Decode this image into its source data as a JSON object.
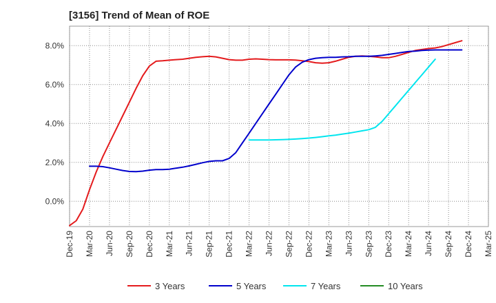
{
  "chart_data": {
    "type": "line",
    "title": "[3156]  Trend of Mean of ROE",
    "xlabel": "",
    "ylabel": "",
    "ylim": [
      -1.3,
      9.0
    ],
    "grid": true,
    "legend_position": "bottom",
    "x_ticks": [
      "Dec-19",
      "Mar-20",
      "Jun-20",
      "Sep-20",
      "Dec-20",
      "Mar-21",
      "Jun-21",
      "Sep-21",
      "Dec-21",
      "Mar-22",
      "Jun-22",
      "Sep-22",
      "Dec-22",
      "Mar-23",
      "Jun-23",
      "Sep-23",
      "Dec-23",
      "Mar-24",
      "Jun-24",
      "Sep-24",
      "Dec-24",
      "Mar-25"
    ],
    "y_ticks": [
      0.0,
      2.0,
      4.0,
      6.0,
      8.0
    ],
    "y_tick_labels": [
      "0.0%",
      "2.0%",
      "4.0%",
      "6.0%",
      "8.0%"
    ],
    "series": [
      {
        "name": "3 Years",
        "color": "#e41a1c",
        "points": [
          [
            "Dec-19",
            -1.25
          ],
          [
            "Jan-20",
            -1.0
          ],
          [
            "Feb-20",
            -0.4
          ],
          [
            "Mar-20",
            0.6
          ],
          [
            "Apr-20",
            1.5
          ],
          [
            "May-20",
            2.3
          ],
          [
            "Jun-20",
            3.0
          ],
          [
            "Jul-20",
            3.7
          ],
          [
            "Aug-20",
            4.4
          ],
          [
            "Sep-20",
            5.1
          ],
          [
            "Oct-20",
            5.8
          ],
          [
            "Nov-20",
            6.45
          ],
          [
            "Dec-20",
            6.95
          ],
          [
            "Jan-21",
            7.2
          ],
          [
            "Feb-21",
            7.22
          ],
          [
            "Mar-21",
            7.25
          ],
          [
            "Apr-21",
            7.28
          ],
          [
            "May-21",
            7.3
          ],
          [
            "Jun-21",
            7.35
          ],
          [
            "Jul-21",
            7.4
          ],
          [
            "Aug-21",
            7.43
          ],
          [
            "Sep-21",
            7.45
          ],
          [
            "Oct-21",
            7.42
          ],
          [
            "Nov-21",
            7.35
          ],
          [
            "Dec-21",
            7.28
          ],
          [
            "Jan-22",
            7.25
          ],
          [
            "Feb-22",
            7.25
          ],
          [
            "Mar-22",
            7.3
          ],
          [
            "Apr-22",
            7.32
          ],
          [
            "May-22",
            7.3
          ],
          [
            "Jun-22",
            7.28
          ],
          [
            "Jul-22",
            7.27
          ],
          [
            "Aug-22",
            7.27
          ],
          [
            "Sep-22",
            7.27
          ],
          [
            "Oct-22",
            7.26
          ],
          [
            "Nov-22",
            7.22
          ],
          [
            "Dec-22",
            7.18
          ],
          [
            "Jan-23",
            7.12
          ],
          [
            "Feb-23",
            7.1
          ],
          [
            "Mar-23",
            7.12
          ],
          [
            "Apr-23",
            7.2
          ],
          [
            "May-23",
            7.3
          ],
          [
            "Jun-23",
            7.4
          ],
          [
            "Jul-23",
            7.45
          ],
          [
            "Aug-23",
            7.47
          ],
          [
            "Sep-23",
            7.45
          ],
          [
            "Oct-23",
            7.42
          ],
          [
            "Nov-23",
            7.38
          ],
          [
            "Dec-23",
            7.38
          ],
          [
            "Jan-24",
            7.45
          ],
          [
            "Feb-24",
            7.55
          ],
          [
            "Mar-24",
            7.65
          ],
          [
            "Apr-24",
            7.75
          ],
          [
            "May-24",
            7.8
          ],
          [
            "Jun-24",
            7.85
          ],
          [
            "Jul-24",
            7.88
          ],
          [
            "Aug-24",
            7.95
          ],
          [
            "Sep-24",
            8.05
          ],
          [
            "Oct-24",
            8.15
          ],
          [
            "Nov-24",
            8.25
          ]
        ]
      },
      {
        "name": "5 Years",
        "color": "#0000cc",
        "points": [
          [
            "Mar-20",
            1.8
          ],
          [
            "Apr-20",
            1.8
          ],
          [
            "May-20",
            1.78
          ],
          [
            "Jun-20",
            1.72
          ],
          [
            "Jul-20",
            1.65
          ],
          [
            "Aug-20",
            1.58
          ],
          [
            "Sep-20",
            1.53
          ],
          [
            "Oct-20",
            1.52
          ],
          [
            "Nov-20",
            1.55
          ],
          [
            "Dec-20",
            1.6
          ],
          [
            "Jan-21",
            1.63
          ],
          [
            "Feb-21",
            1.63
          ],
          [
            "Mar-21",
            1.65
          ],
          [
            "Apr-21",
            1.7
          ],
          [
            "May-21",
            1.75
          ],
          [
            "Jun-21",
            1.82
          ],
          [
            "Jul-21",
            1.9
          ],
          [
            "Aug-21",
            1.98
          ],
          [
            "Sep-21",
            2.05
          ],
          [
            "Oct-21",
            2.08
          ],
          [
            "Nov-21",
            2.08
          ],
          [
            "Dec-21",
            2.2
          ],
          [
            "Jan-22",
            2.5
          ],
          [
            "Feb-22",
            3.0
          ],
          [
            "Mar-22",
            3.5
          ],
          [
            "Apr-22",
            4.0
          ],
          [
            "May-22",
            4.5
          ],
          [
            "Jun-22",
            5.0
          ],
          [
            "Jul-22",
            5.5
          ],
          [
            "Aug-22",
            6.0
          ],
          [
            "Sep-22",
            6.5
          ],
          [
            "Oct-22",
            6.9
          ],
          [
            "Nov-22",
            7.15
          ],
          [
            "Dec-22",
            7.28
          ],
          [
            "Jan-23",
            7.35
          ],
          [
            "Feb-23",
            7.38
          ],
          [
            "Mar-23",
            7.4
          ],
          [
            "Apr-23",
            7.4
          ],
          [
            "May-23",
            7.42
          ],
          [
            "Jun-23",
            7.43
          ],
          [
            "Jul-23",
            7.45
          ],
          [
            "Aug-23",
            7.45
          ],
          [
            "Sep-23",
            7.45
          ],
          [
            "Oct-23",
            7.47
          ],
          [
            "Nov-23",
            7.5
          ],
          [
            "Dec-23",
            7.55
          ],
          [
            "Jan-24",
            7.6
          ],
          [
            "Feb-24",
            7.65
          ],
          [
            "Mar-24",
            7.7
          ],
          [
            "Apr-24",
            7.72
          ],
          [
            "May-24",
            7.75
          ],
          [
            "Jun-24",
            7.77
          ],
          [
            "Jul-24",
            7.78
          ],
          [
            "Aug-24",
            7.78
          ],
          [
            "Sep-24",
            7.78
          ],
          [
            "Oct-24",
            7.78
          ],
          [
            "Nov-24",
            7.78
          ]
        ]
      },
      {
        "name": "7 Years",
        "color": "#00e5ee",
        "points": [
          [
            "Mar-22",
            3.15
          ],
          [
            "Apr-22",
            3.15
          ],
          [
            "May-22",
            3.15
          ],
          [
            "Jun-22",
            3.15
          ],
          [
            "Jul-22",
            3.16
          ],
          [
            "Aug-22",
            3.17
          ],
          [
            "Sep-22",
            3.18
          ],
          [
            "Oct-22",
            3.2
          ],
          [
            "Nov-22",
            3.22
          ],
          [
            "Dec-22",
            3.25
          ],
          [
            "Jan-23",
            3.28
          ],
          [
            "Feb-23",
            3.32
          ],
          [
            "Mar-23",
            3.36
          ],
          [
            "Apr-23",
            3.4
          ],
          [
            "May-23",
            3.45
          ],
          [
            "Jun-23",
            3.5
          ],
          [
            "Jul-23",
            3.56
          ],
          [
            "Aug-23",
            3.62
          ],
          [
            "Sep-23",
            3.68
          ],
          [
            "Oct-23",
            3.8
          ],
          [
            "Nov-23",
            4.1
          ],
          [
            "Dec-23",
            4.5
          ],
          [
            "Jan-24",
            4.9
          ],
          [
            "Feb-24",
            5.3
          ],
          [
            "Mar-24",
            5.7
          ],
          [
            "Apr-24",
            6.1
          ],
          [
            "May-24",
            6.5
          ],
          [
            "Jun-24",
            6.9
          ],
          [
            "Jul-24",
            7.3
          ]
        ]
      },
      {
        "name": "10 Years",
        "color": "#228b22",
        "points": []
      }
    ]
  }
}
